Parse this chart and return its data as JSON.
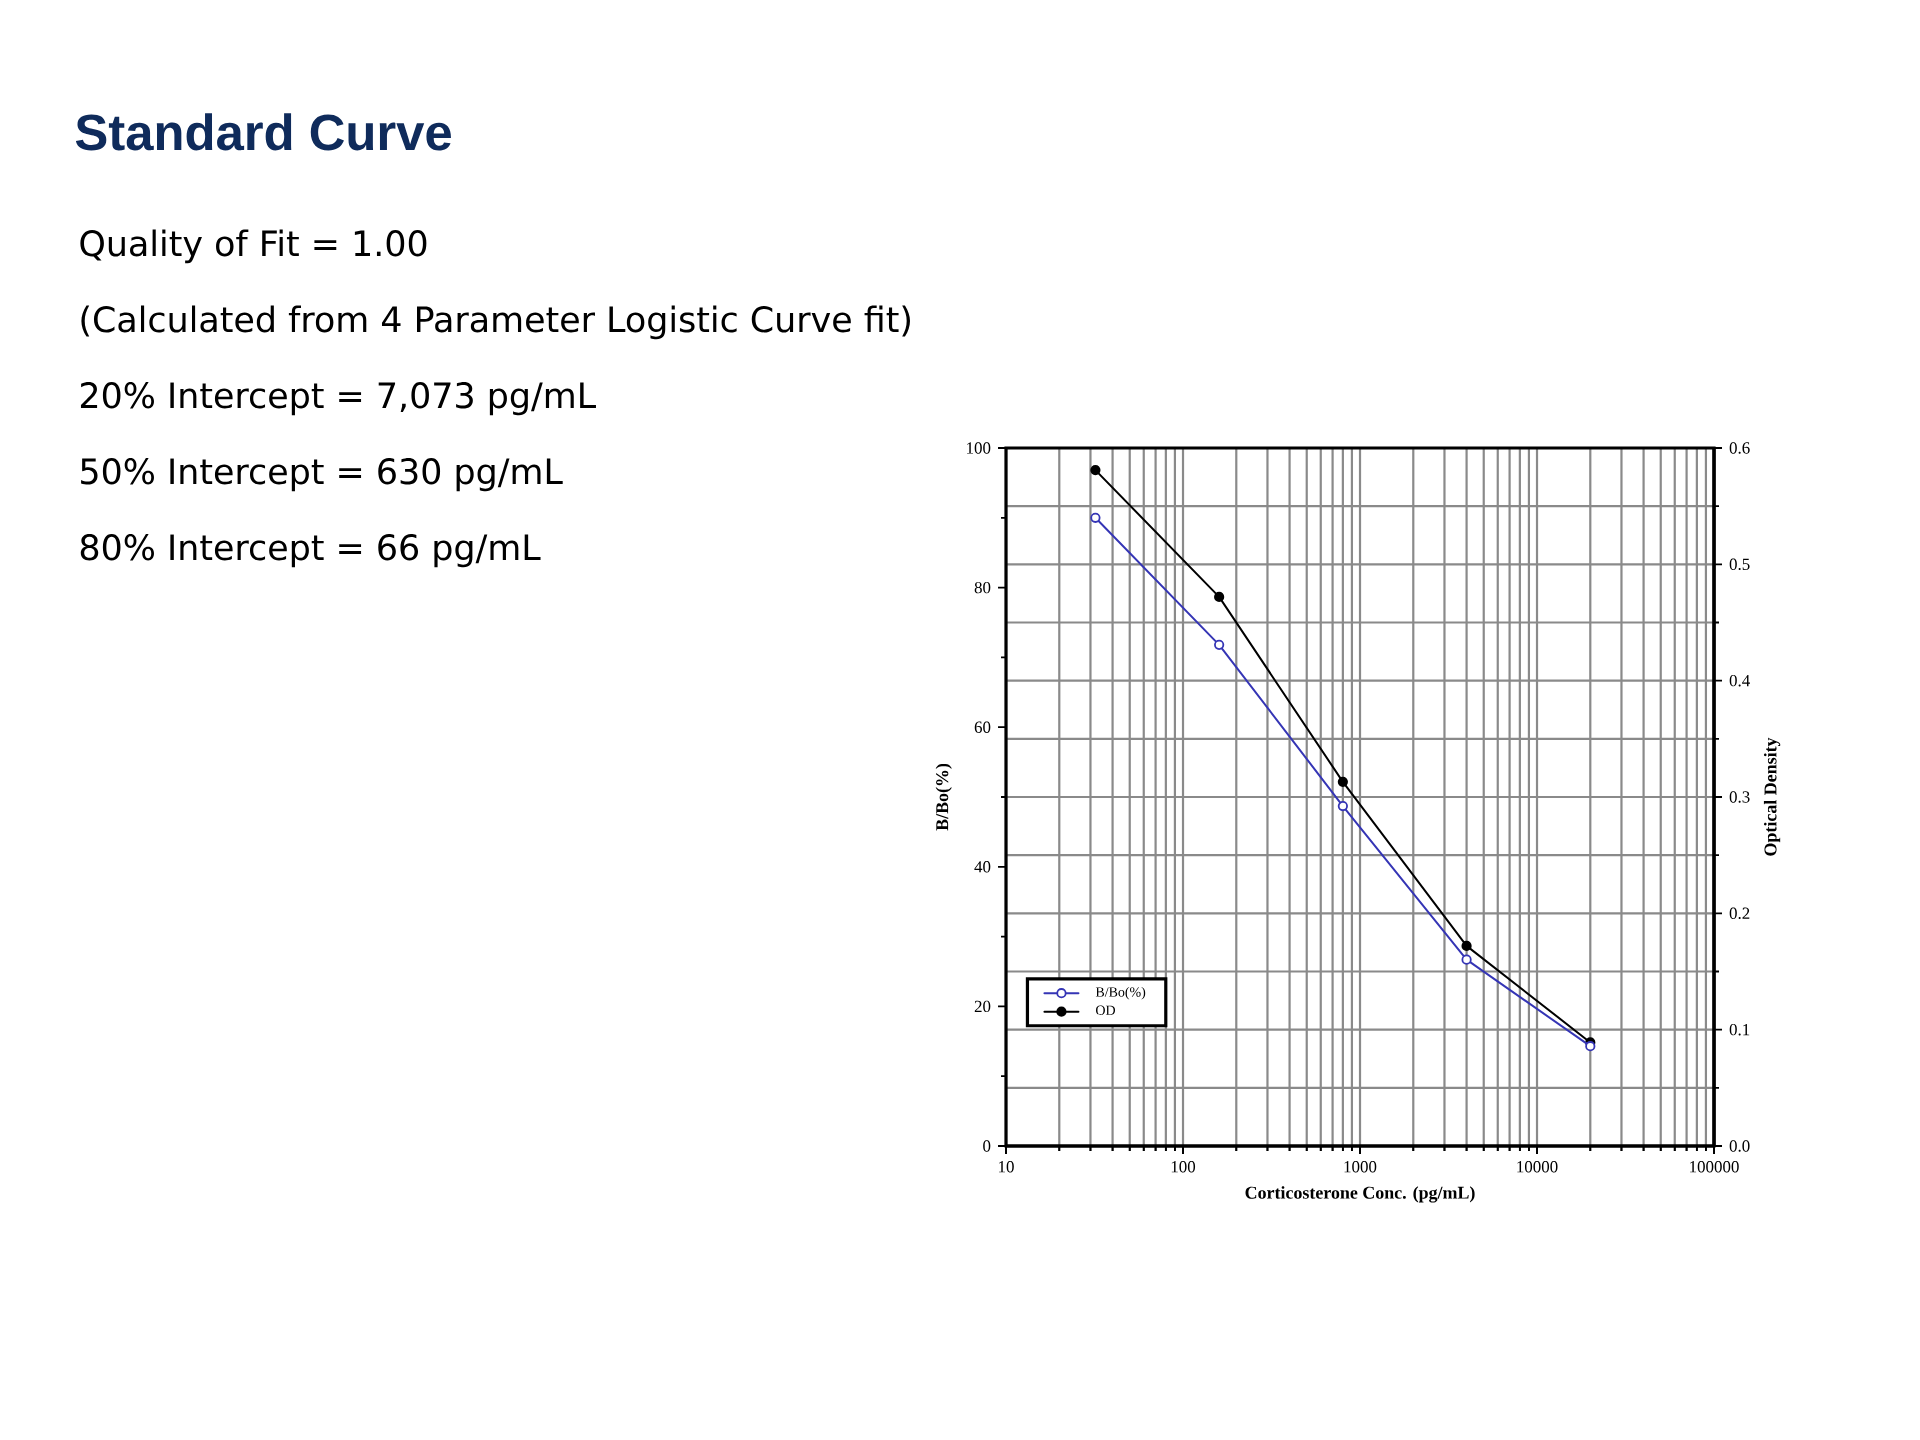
{
  "chart_data": {
    "type": "line",
    "title": "Standard Curve",
    "annotations": [
      "Quality of Fit = 1.00",
      "(Calculated from 4 Parameter Logistic Curve fit)",
      "20% Intercept = 7,073 pg/mL",
      "50% Intercept = 630 pg/mL",
      "80% Intercept = 66 pg/mL"
    ],
    "xlabel": "Corticosterone Conc. (pg/mL)",
    "ylabel": "B/Bo(%)",
    "y2label": "Optical Density",
    "x": [
      32,
      160,
      800,
      4000,
      20000
    ],
    "series": [
      {
        "name": "B/Bo(%)",
        "color": "#3535b5",
        "values": [
          90,
          71.8,
          48.7,
          26.7,
          14.3
        ]
      },
      {
        "name": "OD",
        "color": "#000000",
        "axis": "y2",
        "values": [
          0.581,
          0.472,
          0.313,
          0.172,
          0.089
        ]
      }
    ],
    "log": "x",
    "xlim": [
      10,
      100000
    ],
    "xticks": [
      10,
      100,
      1000,
      10000,
      100000
    ],
    "ylim": [
      0,
      100
    ],
    "yticks": [
      0,
      20,
      40,
      60,
      80,
      100
    ],
    "y2lim": [
      0,
      0.6
    ],
    "y2ticks": [
      {
        "value": 0,
        "label": "0.0"
      },
      0.1,
      0.2,
      0.3,
      0.4,
      0.5,
      0.6
    ],
    "grid": true,
    "legend": "bottom left",
    "marker": "circle"
  }
}
